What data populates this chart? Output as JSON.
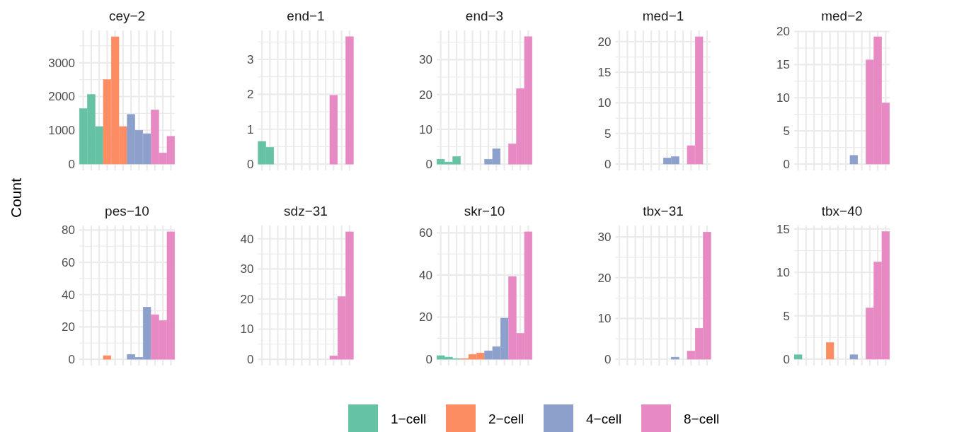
{
  "chart_data": [
    {
      "type": "bar",
      "title": "cey−2",
      "ylabel": "Count",
      "legend": "bottom",
      "grid": true,
      "categories": [
        null,
        null,
        null,
        null,
        null,
        null,
        null,
        null,
        null,
        null,
        null,
        null
      ],
      "ylim": [
        -189,
        3959
      ],
      "yticks": [
        0,
        1000,
        2000,
        3000
      ],
      "series": [
        {
          "name": "1−cell",
          "color": "#66c2a5",
          "values": [
            1640,
            2060,
            1110,
            null,
            null,
            null,
            null,
            null,
            null,
            null,
            null,
            null
          ]
        },
        {
          "name": "2−cell",
          "color": "#fc8d62",
          "values": [
            null,
            null,
            null,
            2500,
            3770,
            1110,
            null,
            null,
            null,
            null,
            null,
            null
          ]
        },
        {
          "name": "4−cell",
          "color": "#8da0cb",
          "values": [
            null,
            null,
            null,
            null,
            null,
            null,
            1470,
            1000,
            900,
            null,
            null,
            null
          ]
        },
        {
          "name": "8−cell",
          "color": "#e78ac3",
          "values": [
            null,
            null,
            null,
            null,
            null,
            null,
            null,
            null,
            null,
            1600,
            330,
            820
          ]
        }
      ]
    },
    {
      "type": "bar",
      "title": "end−1",
      "grid": true,
      "categories": [
        null,
        null,
        null,
        null,
        null,
        null,
        null,
        null,
        null,
        null,
        null,
        null
      ],
      "ylim": [
        -0.18,
        3.83
      ],
      "yticks": [
        0,
        1,
        2,
        3
      ],
      "series": [
        {
          "color": "#66c2a5",
          "values": [
            0.65,
            0.48,
            0,
            null,
            null,
            null,
            null,
            null,
            null,
            null,
            null,
            null
          ]
        },
        {
          "color": "#fc8d62",
          "values": [
            null,
            null,
            null,
            0,
            0,
            0,
            null,
            null,
            null,
            null,
            null,
            null
          ]
        },
        {
          "color": "#8da0cb",
          "values": [
            null,
            null,
            null,
            null,
            null,
            null,
            0,
            0,
            0,
            null,
            null,
            null
          ]
        },
        {
          "color": "#e78ac3",
          "values": [
            null,
            null,
            null,
            null,
            null,
            null,
            null,
            null,
            null,
            1.97,
            0,
            3.65
          ]
        }
      ]
    },
    {
      "type": "bar",
      "title": "end−3",
      "grid": true,
      "categories": [
        null,
        null,
        null,
        null,
        null,
        null,
        null,
        null,
        null,
        null,
        null,
        null
      ],
      "ylim": [
        -1.8,
        38.4
      ],
      "yticks": [
        0,
        10,
        20,
        30
      ],
      "series": [
        {
          "color": "#66c2a5",
          "values": [
            1.4,
            0.6,
            2.2,
            null,
            null,
            null,
            null,
            null,
            null,
            null,
            null,
            null
          ]
        },
        {
          "color": "#fc8d62",
          "values": [
            null,
            null,
            null,
            0,
            0,
            0,
            null,
            null,
            null,
            null,
            null,
            null
          ]
        },
        {
          "color": "#8da0cb",
          "values": [
            null,
            null,
            null,
            null,
            null,
            null,
            1.4,
            4.4,
            0,
            null,
            null,
            null
          ]
        },
        {
          "color": "#e78ac3",
          "values": [
            null,
            null,
            null,
            null,
            null,
            null,
            null,
            null,
            null,
            5.8,
            21.7,
            36.6
          ]
        }
      ]
    },
    {
      "type": "bar",
      "title": "med−1",
      "grid": true,
      "categories": [
        null,
        null,
        null,
        null,
        null,
        null,
        null,
        null,
        null,
        null,
        null,
        null
      ],
      "ylim": [
        -1.04,
        21.84
      ],
      "yticks": [
        0,
        5,
        10,
        15,
        20
      ],
      "series": [
        {
          "color": "#66c2a5",
          "values": [
            0,
            0,
            0,
            null,
            null,
            null,
            null,
            null,
            null,
            null,
            null,
            null
          ]
        },
        {
          "color": "#fc8d62",
          "values": [
            null,
            null,
            null,
            0,
            0,
            0,
            null,
            null,
            null,
            null,
            null,
            null
          ]
        },
        {
          "color": "#8da0cb",
          "values": [
            null,
            null,
            null,
            null,
            null,
            null,
            1.0,
            1.2,
            0,
            null,
            null,
            null
          ]
        },
        {
          "color": "#e78ac3",
          "values": [
            null,
            null,
            null,
            null,
            null,
            null,
            null,
            null,
            null,
            3.0,
            20.8,
            0
          ]
        }
      ]
    },
    {
      "type": "bar",
      "title": "med−2",
      "grid": true,
      "categories": [
        null,
        null,
        null,
        null,
        null,
        null,
        null,
        null,
        null,
        null,
        null,
        null
      ],
      "ylim": [
        -0.96,
        20.16
      ],
      "yticks": [
        0,
        5,
        10,
        15,
        20
      ],
      "series": [
        {
          "color": "#66c2a5",
          "values": [
            0,
            0,
            0,
            null,
            null,
            null,
            null,
            null,
            null,
            null,
            null,
            null
          ]
        },
        {
          "color": "#fc8d62",
          "values": [
            null,
            null,
            null,
            0,
            0,
            0,
            null,
            null,
            null,
            null,
            null,
            null
          ]
        },
        {
          "color": "#8da0cb",
          "values": [
            null,
            null,
            null,
            null,
            null,
            null,
            0,
            1.3,
            0,
            null,
            null,
            null
          ]
        },
        {
          "color": "#e78ac3",
          "values": [
            null,
            null,
            null,
            null,
            null,
            null,
            null,
            null,
            null,
            15.7,
            19.2,
            9.2
          ]
        }
      ]
    },
    {
      "type": "bar",
      "title": "pes−10",
      "grid": true,
      "categories": [
        null,
        null,
        null,
        null,
        null,
        null,
        null,
        null,
        null,
        null,
        null,
        null
      ],
      "ylim": [
        -3.9,
        82.8
      ],
      "yticks": [
        0,
        20,
        40,
        60,
        80
      ],
      "series": [
        {
          "color": "#66c2a5",
          "values": [
            0,
            0,
            0,
            null,
            null,
            null,
            null,
            null,
            null,
            null,
            null,
            null
          ]
        },
        {
          "color": "#fc8d62",
          "values": [
            null,
            null,
            null,
            2.2,
            0,
            0,
            null,
            null,
            null,
            null,
            null,
            null
          ]
        },
        {
          "color": "#8da0cb",
          "values": [
            null,
            null,
            null,
            null,
            null,
            null,
            3,
            1.2,
            32.3,
            null,
            null,
            null
          ]
        },
        {
          "color": "#e78ac3",
          "values": [
            null,
            null,
            null,
            null,
            null,
            null,
            null,
            null,
            null,
            27.6,
            24,
            78.9
          ]
        }
      ]
    },
    {
      "type": "bar",
      "title": "sdz−31",
      "grid": true,
      "categories": [
        null,
        null,
        null,
        null,
        null,
        null,
        null,
        null,
        null,
        null,
        null,
        null
      ],
      "ylim": [
        -2.1,
        44.4
      ],
      "yticks": [
        0,
        10,
        20,
        30,
        40
      ],
      "series": [
        {
          "color": "#66c2a5",
          "values": [
            0,
            0,
            0,
            null,
            null,
            null,
            null,
            null,
            null,
            null,
            null,
            null
          ]
        },
        {
          "color": "#fc8d62",
          "values": [
            null,
            null,
            null,
            0,
            0,
            0,
            null,
            null,
            null,
            null,
            null,
            null
          ]
        },
        {
          "color": "#8da0cb",
          "values": [
            null,
            null,
            null,
            null,
            null,
            null,
            0,
            0,
            0,
            null,
            null,
            null
          ]
        },
        {
          "color": "#e78ac3",
          "values": [
            null,
            null,
            null,
            null,
            null,
            null,
            null,
            null,
            null,
            1.1,
            20.8,
            42.3
          ]
        }
      ]
    },
    {
      "type": "bar",
      "title": "skr−10",
      "grid": true,
      "categories": [
        null,
        null,
        null,
        null,
        null,
        null,
        null,
        null,
        null,
        null,
        null,
        null
      ],
      "ylim": [
        -3,
        63.5
      ],
      "yticks": [
        0,
        20,
        40,
        60
      ],
      "series": [
        {
          "color": "#66c2a5",
          "values": [
            1.7,
            1.0,
            0.3,
            null,
            null,
            null,
            null,
            null,
            null,
            null,
            null,
            null
          ]
        },
        {
          "color": "#fc8d62",
          "values": [
            null,
            null,
            null,
            0.3,
            2.3,
            3.0,
            null,
            null,
            null,
            null,
            null,
            null
          ]
        },
        {
          "color": "#8da0cb",
          "values": [
            null,
            null,
            null,
            null,
            null,
            null,
            4,
            6,
            19.5,
            null,
            null,
            null
          ]
        },
        {
          "color": "#e78ac3",
          "values": [
            null,
            null,
            null,
            null,
            null,
            null,
            null,
            null,
            null,
            39.3,
            12.3,
            60.5
          ]
        }
      ]
    },
    {
      "type": "bar",
      "title": "tbx−31",
      "grid": true,
      "categories": [
        null,
        null,
        null,
        null,
        null,
        null,
        null,
        null,
        null,
        null,
        null,
        null
      ],
      "ylim": [
        -1.56,
        32.8
      ],
      "yticks": [
        0,
        10,
        20,
        30
      ],
      "series": [
        {
          "color": "#66c2a5",
          "values": [
            0,
            0,
            0,
            null,
            null,
            null,
            null,
            null,
            null,
            null,
            null,
            null
          ]
        },
        {
          "color": "#fc8d62",
          "values": [
            null,
            null,
            null,
            0,
            0,
            0,
            null,
            null,
            null,
            null,
            null,
            null
          ]
        },
        {
          "color": "#8da0cb",
          "values": [
            null,
            null,
            null,
            null,
            null,
            null,
            0,
            0.5,
            0,
            null,
            null,
            null
          ]
        },
        {
          "color": "#e78ac3",
          "values": [
            null,
            null,
            null,
            null,
            null,
            null,
            null,
            null,
            null,
            2,
            7.6,
            31.2
          ]
        }
      ]
    },
    {
      "type": "bar",
      "title": "tbx−40",
      "grid": true,
      "categories": [
        null,
        null,
        null,
        null,
        null,
        null,
        null,
        null,
        null,
        null,
        null,
        null
      ],
      "ylim": [
        -0.74,
        15.4
      ],
      "yticks": [
        0,
        5,
        10,
        15
      ],
      "series": [
        {
          "color": "#66c2a5",
          "values": [
            0.5,
            0,
            0,
            null,
            null,
            null,
            null,
            null,
            null,
            null,
            null,
            null
          ]
        },
        {
          "color": "#fc8d62",
          "values": [
            null,
            null,
            null,
            0,
            1.9,
            0,
            null,
            null,
            null,
            null,
            null,
            null
          ]
        },
        {
          "color": "#8da0cb",
          "values": [
            null,
            null,
            null,
            null,
            null,
            null,
            0,
            0.5,
            0,
            null,
            null,
            null
          ]
        },
        {
          "color": "#e78ac3",
          "values": [
            null,
            null,
            null,
            null,
            null,
            null,
            null,
            null,
            null,
            5.9,
            11.2,
            14.7
          ]
        }
      ]
    }
  ]
}
